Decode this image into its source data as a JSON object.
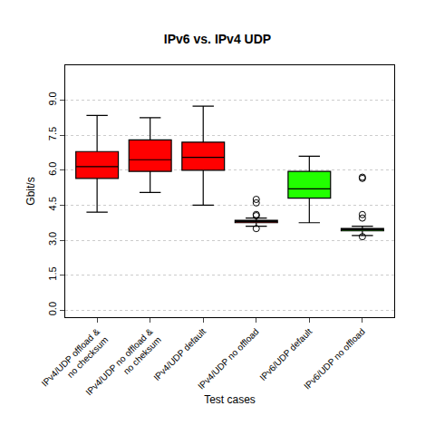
{
  "chart_data": {
    "type": "box",
    "title": "IPv6 vs. IPv4 UDP",
    "x_label": "Test cases",
    "y_label": "Gbit/s",
    "categories": [
      "IPv4/UDP offload &\nno checksum",
      "IPv4/UDP no offload &\nno cheksum",
      "IPv4/UDP default",
      "IPv4/UDP no offload",
      "IPv6/UDP default",
      "IPv6/UDP no offload"
    ],
    "lower_whisker": [
      4.2,
      5.05,
      4.5,
      3.6,
      3.75,
      3.2
    ],
    "q1": [
      5.65,
      5.95,
      6.0,
      3.75,
      4.8,
      3.4
    ],
    "median": [
      6.15,
      6.45,
      6.55,
      3.8,
      5.2,
      3.45
    ],
    "q3": [
      6.8,
      7.3,
      7.2,
      3.85,
      5.95,
      3.5
    ],
    "upper_whisker": [
      8.35,
      8.25,
      8.75,
      3.95,
      6.6,
      3.6
    ],
    "outliers": [
      [],
      [],
      [],
      [
        4.75,
        4.6,
        4.1,
        4.05,
        3.5
      ],
      [],
      [
        5.7,
        5.65,
        4.1,
        3.95,
        3.15
      ]
    ],
    "colors": [
      "#ff0000",
      "#ff0000",
      "#ff0000",
      "#ff0000",
      "#22ff00",
      "#22ff00"
    ],
    "ylim": [
      -0.3,
      10.5
    ],
    "yticks": [
      {
        "value": 0,
        "label": "0.0"
      },
      1.5,
      {
        "value": 3,
        "label": "3.0"
      },
      4.5,
      {
        "value": 6,
        "label": "6.0"
      },
      7.5,
      {
        "value": 9,
        "label": "9.0"
      }
    ],
    "grid": true
  }
}
